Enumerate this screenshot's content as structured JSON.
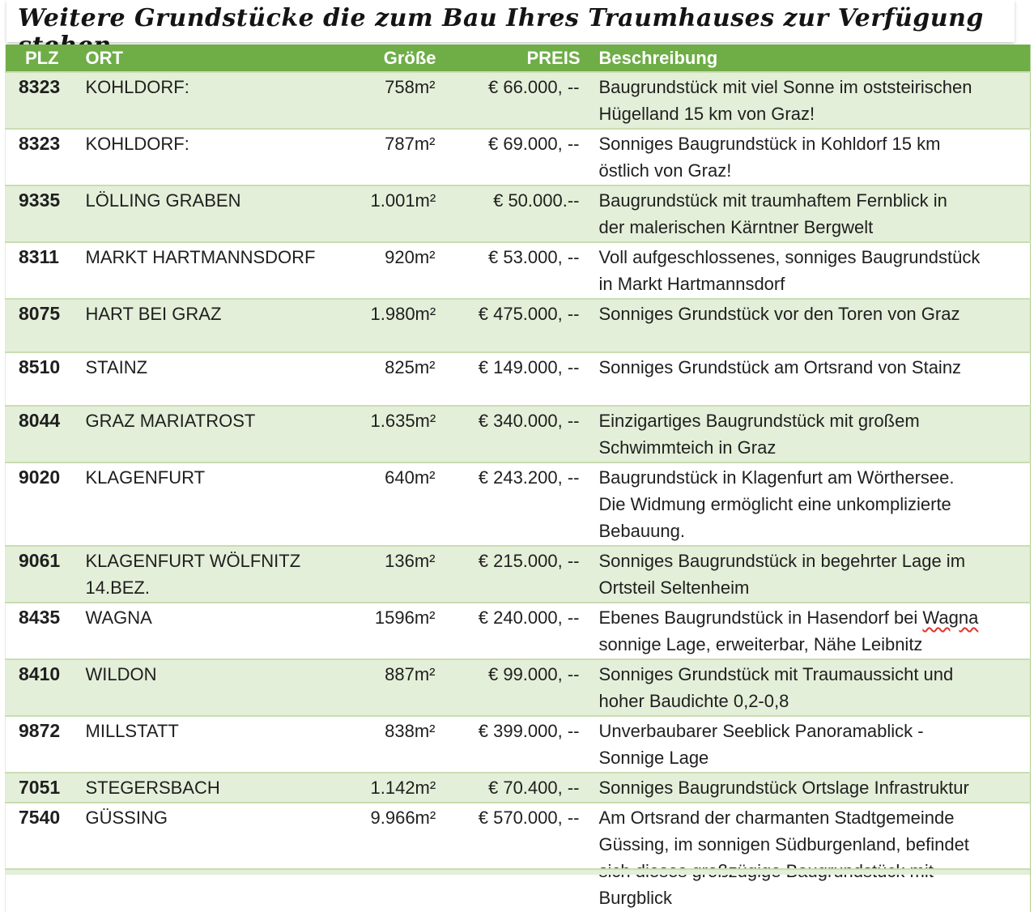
{
  "title": "Weitere Grundstücke die zum Bau Ihres Traumhauses zur Verfügung stehen",
  "colors": {
    "header_bg": "#6fad47",
    "band_bg": "#e4efd9",
    "row_line": "#c9ddb2",
    "spellcheck": "#e0342b"
  },
  "table": {
    "columns": [
      "PLZ",
      "ORT",
      "Größe",
      "PREIS",
      "Beschreibung"
    ],
    "rows": [
      {
        "plz": "8323",
        "ort": "KOHLDORF:",
        "groesse": "758m²",
        "preis": "€ 66.000, --",
        "beschreibung": "Baugrundstück mit viel Sonne im oststeirischen\nHügelland 15 km von Graz!"
      },
      {
        "plz": "8323",
        "ort": "KOHLDORF:",
        "groesse": "787m²",
        "preis": "€ 69.000, --",
        "beschreibung": "Sonniges Baugrundstück in Kohldorf 15 km\nöstlich von Graz!"
      },
      {
        "plz": "9335",
        "ort": "LÖLLING GRABEN",
        "groesse": "1.001m²",
        "preis": "€ 50.000.--",
        "beschreibung": "Baugrundstück mit traumhaftem Fernblick in\nder malerischen Kärntner Bergwelt"
      },
      {
        "plz": "8311",
        "ort": "MARKT HARTMANNSDORF",
        "groesse": "920m²",
        "preis": "€ 53.000, --",
        "beschreibung": "Voll aufgeschlossenes, sonniges Baugrundstück\nin Markt Hartmannsdorf"
      },
      {
        "plz": "8075",
        "ort": "HART BEI GRAZ",
        "groesse": "1.980m²",
        "preis": "€ 475.000, --",
        "beschreibung": "Sonniges Grundstück vor den Toren von Graz"
      },
      {
        "plz": "8510",
        "ort": "STAINZ",
        "groesse": "825m²",
        "preis": "€ 149.000, --",
        "beschreibung": "Sonniges Grundstück am Ortsrand von Stainz"
      },
      {
        "plz": "8044",
        "ort": "GRAZ MARIATROST",
        "groesse": "1.635m²",
        "preis": "€ 340.000, --",
        "beschreibung": "Einzigartiges Baugrundstück mit großem\nSchwimmteich in Graz"
      },
      {
        "plz": "9020",
        "ort": "KLAGENFURT",
        "groesse": "640m²",
        "preis": "€ 243.200, --",
        "beschreibung": "Baugrundstück in Klagenfurt am Wörthersee.\nDie Widmung ermöglicht eine unkomplizierte\nBebauung."
      },
      {
        "plz": "9061",
        "ort": "KLAGENFURT WÖLFNITZ\n14.BEZ.",
        "groesse": "136m²",
        "preis": "€ 215.000, --",
        "beschreibung": "Sonniges Baugrundstück in begehrter Lage im\nOrtsteil Seltenheim"
      },
      {
        "plz": "8435",
        "ort": "WAGNA",
        "groesse": "1596m²",
        "preis": "€ 240.000, --",
        "beschreibung_pre": "Ebenes Baugrundstück in Hasendorf bei ",
        "beschreibung_marked": "Wagna",
        "beschreibung_post": "\nsonnige Lage, erweiterbar, Nähe Leibnitz"
      },
      {
        "plz": "8410",
        "ort": "WILDON",
        "groesse": "887m²",
        "preis": "€ 99.000, --",
        "beschreibung": "Sonniges Grundstück mit Traumaussicht und\nhoher Baudichte 0,2-0,8"
      },
      {
        "plz": "9872",
        "ort": "MILLSTATT",
        "groesse": "838m²",
        "preis": "€ 399.000, --",
        "beschreibung": "Unverbaubarer Seeblick Panoramablick -\nSonnige Lage"
      },
      {
        "plz": "7051",
        "ort": "STEGERSBACH",
        "groesse": "1.142m²",
        "preis": "€ 70.400, --",
        "beschreibung": "Sonniges Baugrundstück Ortslage Infrastruktur"
      },
      {
        "plz": "7540",
        "ort": "GÜSSING",
        "groesse": "9.966m²",
        "preis": "€ 570.000, --",
        "beschreibung": "Am Ortsrand der charmanten Stadtgemeinde\nGüssing, im sonnigen Südburgenland, befindet\nsich dieses großzügige Baugrundstück mit\nBurgblick"
      }
    ]
  }
}
